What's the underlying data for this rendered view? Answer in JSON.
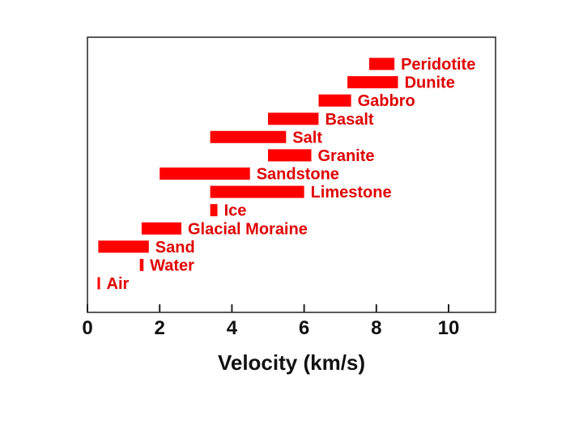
{
  "chart_data": {
    "type": "bar",
    "orientation": "horizontal-range",
    "xlabel": "Velocity (km/s)",
    "xlim": [
      0,
      11.3
    ],
    "xticks": [
      "0",
      "2",
      "4",
      "6",
      "8",
      "10"
    ],
    "xtick_values": [
      0,
      2,
      4,
      6,
      8,
      10
    ],
    "bar_color": "#ff0000",
    "label_color": "#e00000",
    "grid": false,
    "series": [
      {
        "name": "Peridotite",
        "start": 7.8,
        "end": 8.5
      },
      {
        "name": "Dunite",
        "start": 7.2,
        "end": 8.6
      },
      {
        "name": "Gabbro",
        "start": 6.4,
        "end": 7.3
      },
      {
        "name": "Basalt",
        "start": 5.0,
        "end": 6.4
      },
      {
        "name": "Salt",
        "start": 3.4,
        "end": 5.5
      },
      {
        "name": "Granite",
        "start": 5.0,
        "end": 6.2
      },
      {
        "name": "Sandstone",
        "start": 2.0,
        "end": 4.5
      },
      {
        "name": "Limestone",
        "start": 3.4,
        "end": 6.0
      },
      {
        "name": "Ice",
        "start": 3.4,
        "end": 3.6
      },
      {
        "name": "Glacial Moraine",
        "start": 1.5,
        "end": 2.6
      },
      {
        "name": "Sand",
        "start": 0.3,
        "end": 1.7
      },
      {
        "name": "Water",
        "start": 1.45,
        "end": 1.55
      },
      {
        "name": "Air",
        "start": 0.28,
        "end": 0.32
      }
    ]
  }
}
